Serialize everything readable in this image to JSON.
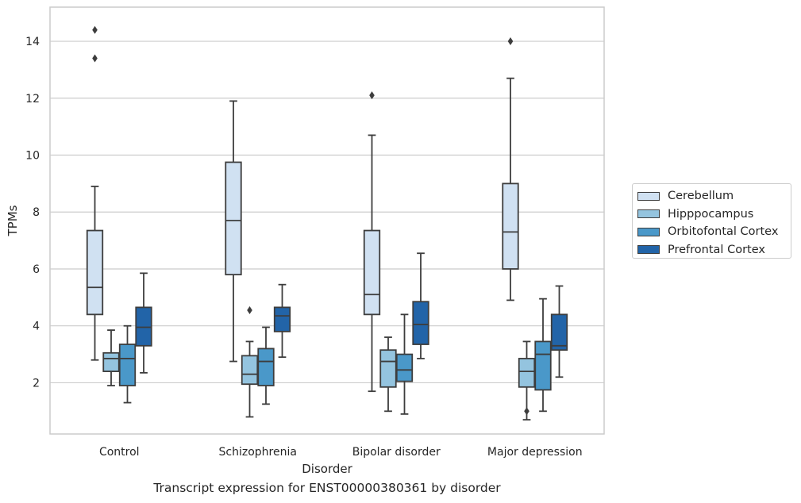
{
  "chart_data": {
    "type": "box",
    "title": "",
    "caption": "Transcript expression for ENST00000380361 by disorder",
    "xlabel": "Disorder",
    "ylabel": "TPMs",
    "ylim": [
      0.2,
      15.2
    ],
    "yticks": [
      2,
      4,
      6,
      8,
      10,
      12,
      14
    ],
    "grid": "horizontal",
    "legend_position": "right",
    "categories": [
      "Control",
      "Schizophrenia",
      "Bipolar disorder",
      "Major depression"
    ],
    "series": [
      {
        "name": "Cerebellum",
        "color": "#d0e1f2",
        "boxes": [
          {
            "whisker_low": 2.8,
            "q1": 4.4,
            "median": 5.35,
            "q3": 7.35,
            "whisker_high": 8.9,
            "outliers": [
              13.4,
              14.4
            ]
          },
          {
            "whisker_low": 2.75,
            "q1": 5.8,
            "median": 7.7,
            "q3": 9.75,
            "whisker_high": 11.9,
            "outliers": []
          },
          {
            "whisker_low": 1.7,
            "q1": 4.4,
            "median": 5.1,
            "q3": 7.35,
            "whisker_high": 10.7,
            "outliers": [
              12.1
            ]
          },
          {
            "whisker_low": 4.9,
            "q1": 6.0,
            "median": 7.3,
            "q3": 9.0,
            "whisker_high": 12.7,
            "outliers": [
              14.0
            ]
          }
        ]
      },
      {
        "name": "Hipppocampus",
        "color": "#94c4df",
        "boxes": [
          {
            "whisker_low": 1.9,
            "q1": 2.4,
            "median": 2.85,
            "q3": 3.05,
            "whisker_high": 3.85,
            "outliers": []
          },
          {
            "whisker_low": 0.8,
            "q1": 1.95,
            "median": 2.3,
            "q3": 2.95,
            "whisker_high": 3.45,
            "outliers": [
              4.55
            ]
          },
          {
            "whisker_low": 1.0,
            "q1": 1.85,
            "median": 2.75,
            "q3": 3.15,
            "whisker_high": 3.6,
            "outliers": []
          },
          {
            "whisker_low": 0.7,
            "q1": 1.85,
            "median": 2.4,
            "q3": 2.85,
            "whisker_high": 3.45,
            "outliers": [
              1.0
            ]
          }
        ]
      },
      {
        "name": "Orbitofontal Cortex",
        "color": "#4a98c9",
        "boxes": [
          {
            "whisker_low": 1.3,
            "q1": 1.9,
            "median": 2.85,
            "q3": 3.35,
            "whisker_high": 4.0,
            "outliers": []
          },
          {
            "whisker_low": 1.25,
            "q1": 1.9,
            "median": 2.75,
            "q3": 3.2,
            "whisker_high": 3.95,
            "outliers": []
          },
          {
            "whisker_low": 0.9,
            "q1": 2.05,
            "median": 2.45,
            "q3": 3.0,
            "whisker_high": 4.4,
            "outliers": []
          },
          {
            "whisker_low": 1.0,
            "q1": 1.75,
            "median": 3.0,
            "q3": 3.45,
            "whisker_high": 4.95,
            "outliers": []
          }
        ]
      },
      {
        "name": "Prefrontal Cortex",
        "color": "#2264a8",
        "boxes": [
          {
            "whisker_low": 2.35,
            "q1": 3.3,
            "median": 3.95,
            "q3": 4.65,
            "whisker_high": 5.85,
            "outliers": []
          },
          {
            "whisker_low": 2.9,
            "q1": 3.8,
            "median": 4.35,
            "q3": 4.65,
            "whisker_high": 5.45,
            "outliers": []
          },
          {
            "whisker_low": 2.85,
            "q1": 3.35,
            "median": 4.05,
            "q3": 4.85,
            "whisker_high": 6.55,
            "outliers": []
          },
          {
            "whisker_low": 2.2,
            "q1": 3.15,
            "median": 3.3,
            "q3": 4.4,
            "whisker_high": 5.4,
            "outliers": []
          }
        ]
      }
    ]
  }
}
